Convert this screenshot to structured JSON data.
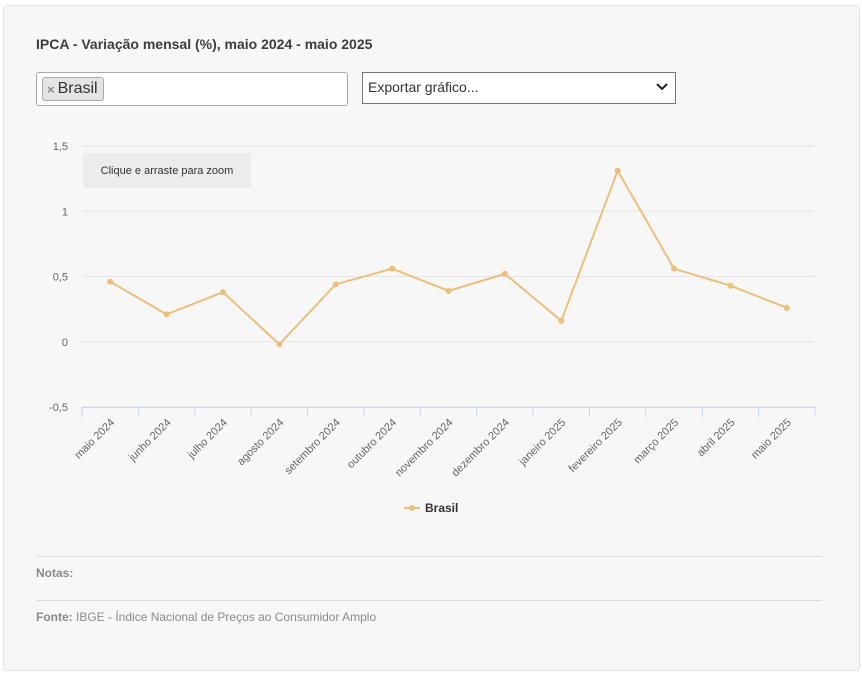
{
  "title": "IPCA - Variação mensal (%), maio 2024 - maio 2025",
  "filter": {
    "tag_label": "Brasil",
    "remove_glyph": "×"
  },
  "export": {
    "label": "Exportar gráfico..."
  },
  "zoom_hint": "Clique e arraste para zoom",
  "notes_label": "Notas:",
  "source": {
    "label": "Fonte:",
    "text": "IBGE - Índice Nacional de Preços ao Consumidor Amplo"
  },
  "colors": {
    "series": "#ecbf7d",
    "grid": "#e6e6e6",
    "axis": "#ccd6eb"
  },
  "chart_data": {
    "type": "line",
    "title": "IPCA - Variação mensal (%), maio 2024 - maio 2025",
    "categories": [
      "maio 2024",
      "junho 2024",
      "julho 2024",
      "agosto 2024",
      "setembro 2024",
      "outubro 2024",
      "novembro 2024",
      "dezembro 2024",
      "janeiro 2025",
      "fevereiro 2025",
      "março 2025",
      "abril 2025",
      "maio 2025"
    ],
    "series": [
      {
        "name": "Brasil",
        "values": [
          0.46,
          0.21,
          0.38,
          -0.02,
          0.44,
          0.56,
          0.39,
          0.52,
          0.16,
          1.31,
          0.56,
          0.43,
          0.26
        ]
      }
    ],
    "yticks": [
      1.5,
      1,
      0.5,
      0,
      -0.5
    ],
    "ytick_labels": [
      "1,5",
      "1",
      "0,5",
      "0",
      "-0,5"
    ],
    "ylim": [
      -0.5,
      1.5
    ],
    "xlabel": "",
    "ylabel": "",
    "legend": "bottom-center",
    "grid": true
  }
}
